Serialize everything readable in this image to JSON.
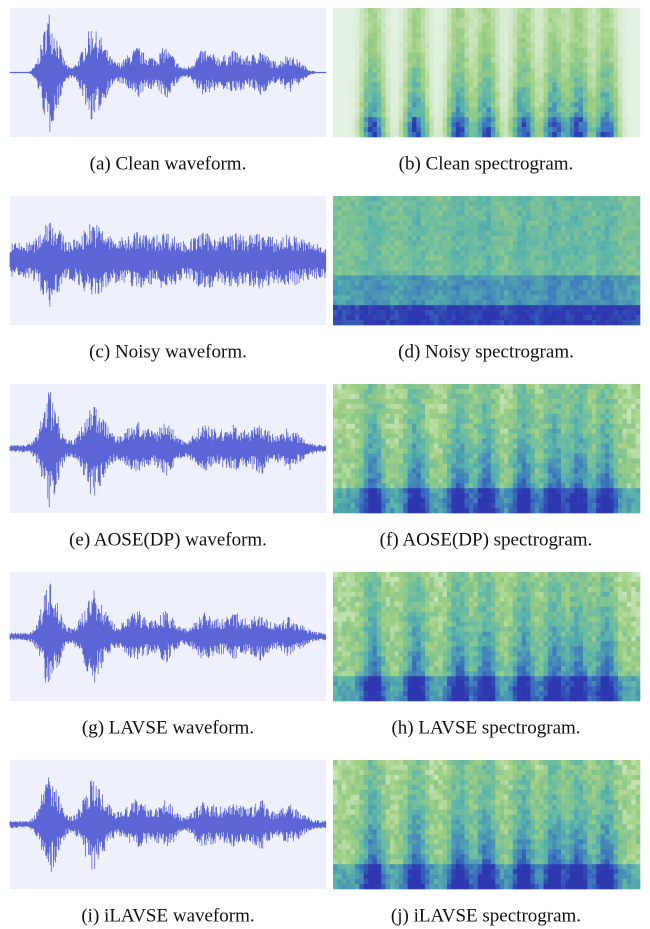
{
  "panels": [
    {
      "caption": "(a) Clean waveform."
    },
    {
      "caption": "(b) Clean spectrogram."
    },
    {
      "caption": "(c) Noisy waveform."
    },
    {
      "caption": "(d) Noisy spectrogram."
    },
    {
      "caption": "(e) AOSE(DP) waveform."
    },
    {
      "caption": "(f) AOSE(DP) spectrogram."
    },
    {
      "caption": "(g) LAVSE waveform."
    },
    {
      "caption": "(h) LAVSE spectrogram."
    },
    {
      "caption": "(i) iLAVSE waveform."
    },
    {
      "caption": "(j) iLAVSE spectrogram."
    }
  ]
}
